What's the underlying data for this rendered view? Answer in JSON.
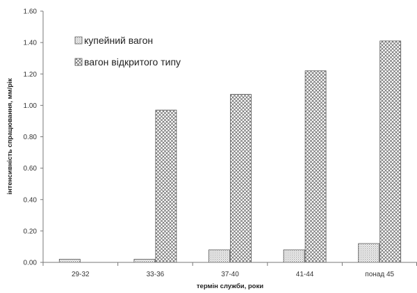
{
  "chart_data": {
    "type": "bar",
    "categories": [
      "29-32",
      "33-36",
      "37-40",
      "41-44",
      "понад 45"
    ],
    "series": [
      {
        "name": "купейний вагон",
        "values": [
          0.02,
          0.02,
          0.08,
          0.08,
          0.12
        ]
      },
      {
        "name": "вагон відкритого типу",
        "values": [
          0.0,
          0.97,
          1.07,
          1.22,
          1.41
        ]
      }
    ],
    "xlabel": "термін служби, роки",
    "ylabel": "інтенсивність спрацювання, мм/рік",
    "ylim": [
      0,
      1.6
    ],
    "yticks": [
      "0.00",
      "0.20",
      "0.40",
      "0.60",
      "0.80",
      "1.00",
      "1.20",
      "1.40",
      "1.60"
    ],
    "grid": false,
    "legend_position": "top-left"
  }
}
